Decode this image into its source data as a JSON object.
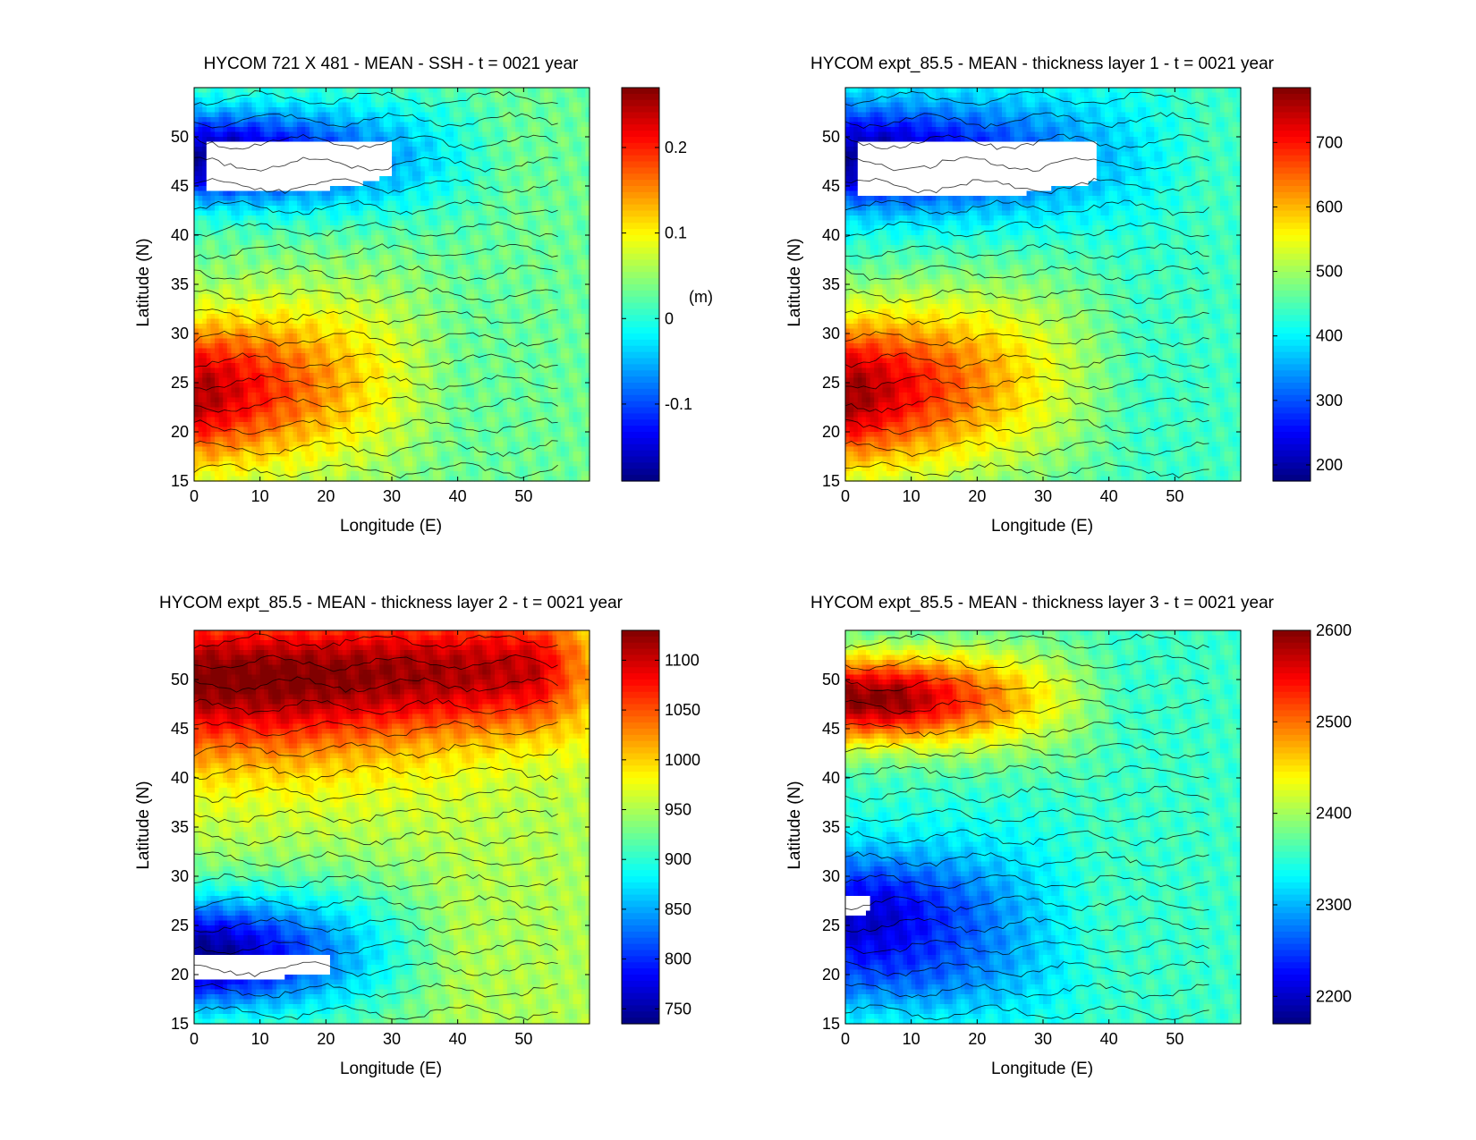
{
  "chart_data": [
    {
      "type": "heatmap",
      "title": "HYCOM 721 X 481 - MEAN - SSH - t = 0021 year",
      "xlabel": "Longitude (E)",
      "ylabel": "Latitude (N)",
      "xlim": [
        0,
        60
      ],
      "ylim": [
        15,
        55
      ],
      "xticks": [
        "0",
        "10",
        "20",
        "30",
        "40",
        "50"
      ],
      "yticks": [
        "15",
        "20",
        "25",
        "30",
        "35",
        "40",
        "45",
        "50"
      ],
      "colorbar": {
        "ticks": [
          -0.1,
          0,
          0.1,
          0.2
        ],
        "tick_labels": [
          "-0.1",
          "0",
          "0.1",
          "0.2"
        ],
        "range": [
          -0.19,
          0.27
        ],
        "unit_label": "(m)"
      },
      "grid": false,
      "white_region": {
        "lon": [
          2,
          29
        ],
        "lat": [
          44.5,
          49.5
        ]
      },
      "field": {
        "kind": "double_gyre",
        "base": 0.03,
        "gyres": [
          {
            "center": [
              2,
              24
            ],
            "amp": 0.22,
            "sx": 38,
            "sy": 7.5,
            "tilt": 0.05
          },
          {
            "center": [
              6,
              48
            ],
            "amp": -0.21,
            "sx": 42,
            "sy": 4.8,
            "tilt": 0
          }
        ],
        "noise": 0.012
      }
    },
    {
      "type": "heatmap",
      "title": "HYCOM expt_85.5 - MEAN - thickness layer 1 - t = 0021 year",
      "xlabel": "Longitude (E)",
      "ylabel": "Latitude (N)",
      "xlim": [
        0,
        60
      ],
      "ylim": [
        15,
        55
      ],
      "xticks": [
        "0",
        "10",
        "20",
        "30",
        "40",
        "50"
      ],
      "yticks": [
        "15",
        "20",
        "25",
        "30",
        "35",
        "40",
        "45",
        "50"
      ],
      "colorbar": {
        "ticks": [
          200,
          300,
          400,
          500,
          600,
          700
        ],
        "tick_labels": [
          "200",
          "300",
          "400",
          "500",
          "600",
          "700"
        ],
        "range": [
          175,
          785
        ]
      },
      "grid": false,
      "white_region": {
        "lon": [
          2,
          38
        ],
        "lat": [
          44.0,
          49.5
        ]
      },
      "field": {
        "kind": "double_gyre",
        "base": 440,
        "gyres": [
          {
            "center": [
              2,
              24
            ],
            "amp": 330,
            "sx": 42,
            "sy": 8.0,
            "tilt": 0.05
          },
          {
            "center": [
              6,
              48
            ],
            "amp": -250,
            "sx": 48,
            "sy": 5.5,
            "tilt": 0
          }
        ],
        "noise": 14
      }
    },
    {
      "type": "heatmap",
      "title": "HYCOM expt_85.5 - MEAN - thickness layer 2 - t = 0021 year",
      "xlabel": "Longitude (E)",
      "ylabel": "Latitude (N)",
      "xlim": [
        0,
        60
      ],
      "ylim": [
        15,
        55
      ],
      "xticks": [
        "0",
        "10",
        "20",
        "30",
        "40",
        "50"
      ],
      "yticks": [
        "15",
        "20",
        "25",
        "30",
        "35",
        "40",
        "45",
        "50"
      ],
      "colorbar": {
        "ticks": [
          750,
          800,
          850,
          900,
          950,
          1000,
          1050,
          1100
        ],
        "tick_labels": [
          "750",
          "800",
          "850",
          "900",
          "950",
          "1000",
          "1050",
          "1100"
        ],
        "range": [
          735,
          1130
        ]
      },
      "grid": false,
      "white_region": {
        "lon": [
          0,
          20
        ],
        "lat": [
          19.5,
          22.0
        ]
      },
      "field": {
        "kind": "double_gyre",
        "base": 950,
        "gyres": [
          {
            "center": [
              4,
              22
            ],
            "amp": -210,
            "sx": 36,
            "sy": 6.0,
            "tilt": 0
          },
          {
            "center": [
              52,
              51
            ],
            "amp": 150,
            "sx": 14,
            "sy": 6.5,
            "tilt": 0
          },
          {
            "center": [
              15,
              45
            ],
            "amp": 55,
            "sx": 40,
            "sy": 7.5,
            "tilt": 0
          }
        ],
        "noise": 9
      }
    },
    {
      "type": "heatmap",
      "title": "HYCOM expt_85.5 - MEAN - thickness layer 3 - t = 0021 year",
      "xlabel": "Longitude (E)",
      "ylabel": "Latitude (N)",
      "xlim": [
        0,
        60
      ],
      "ylim": [
        15,
        55
      ],
      "xticks": [
        "0",
        "10",
        "20",
        "30",
        "40",
        "50"
      ],
      "yticks": [
        "15",
        "20",
        "25",
        "30",
        "35",
        "40",
        "45",
        "50"
      ],
      "colorbar": {
        "ticks": [
          2200,
          2300,
          2400,
          2500,
          2600
        ],
        "tick_labels": [
          "2200",
          "2300",
          "2400",
          "2500",
          "2600"
        ],
        "range": [
          2170,
          2600
        ]
      },
      "grid": false,
      "white_region": {
        "lon": [
          0,
          3.5
        ],
        "lat": [
          26.0,
          28.0
        ]
      },
      "field": {
        "kind": "double_gyre",
        "base": 2355,
        "gyres": [
          {
            "center": [
              8,
              48
            ],
            "amp": 240,
            "sx": 34,
            "sy": 4.5,
            "tilt": 0
          },
          {
            "center": [
              6,
              26
            ],
            "amp": -150,
            "sx": 32,
            "sy": 6.5,
            "tilt": 0
          },
          {
            "center": [
              12,
              19
            ],
            "amp": -40,
            "sx": 30,
            "sy": 4.0,
            "tilt": 0
          }
        ],
        "noise": 10
      }
    }
  ]
}
